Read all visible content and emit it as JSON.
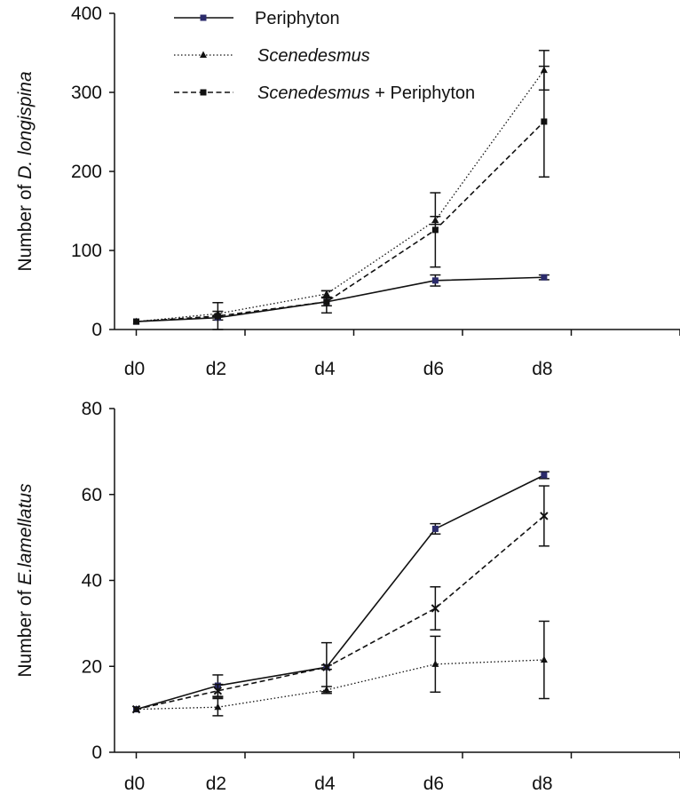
{
  "legend": [
    {
      "segments": [
        {
          "text": "Periphyton",
          "italic": false
        }
      ],
      "style": "solid",
      "marker": "square",
      "color": "#2b2b6b"
    },
    {
      "segments": [
        {
          "text": "Scenedesmus",
          "italic": true
        }
      ],
      "style": "dotted",
      "marker": "triangle",
      "color": "#111111"
    },
    {
      "segments": [
        {
          "text": "Scenedesmus",
          "italic": true
        },
        {
          "text": " + Periphyton",
          "italic": false
        }
      ],
      "style": "dashed",
      "marker": "square",
      "color": "#111111"
    }
  ],
  "chart_data": [
    {
      "type": "line",
      "ylabel_parts": [
        {
          "text": "Number of ",
          "italic": false
        },
        {
          "text": "D. longispina",
          "italic": true
        }
      ],
      "xlabel": "",
      "categories": [
        "d0",
        "d2",
        "d4",
        "d6",
        "d8"
      ],
      "x_values": [
        0,
        1.5,
        3.5,
        5.5,
        7.5
      ],
      "x_tick_positions": [
        0,
        2,
        4,
        6,
        8,
        10
      ],
      "x_tick_labels": [
        "d0",
        "d2",
        "d4",
        "d6",
        "d8"
      ],
      "xlim": [
        -0.4,
        10
      ],
      "ylim": [
        0,
        400
      ],
      "yticks": [
        0,
        100,
        200,
        300,
        400
      ],
      "grid": false,
      "legend_position": "top-center",
      "series": [
        {
          "name": "Periphyton",
          "style": "solid",
          "marker": "square",
          "values": [
            10,
            15,
            35,
            62,
            66
          ],
          "errors": [
            0,
            3,
            5,
            7,
            3
          ]
        },
        {
          "name": "Scenedesmus",
          "style": "dotted",
          "marker": "triangle",
          "values": [
            10,
            20,
            45,
            138,
            328
          ],
          "errors": [
            0,
            3,
            4,
            5,
            25
          ]
        },
        {
          "name": "Scenedesmus + Periphyton",
          "style": "dashed",
          "marker": "square",
          "values": [
            10,
            17,
            35,
            126,
            263
          ],
          "errors": [
            0,
            17,
            14,
            47,
            70
          ]
        }
      ]
    },
    {
      "type": "line",
      "ylabel_parts": [
        {
          "text": "Number of ",
          "italic": false
        },
        {
          "text": "E.lamellatus",
          "italic": true
        }
      ],
      "xlabel": "",
      "categories": [
        "d0",
        "d2",
        "d4",
        "d6",
        "d8"
      ],
      "x_values": [
        0,
        1.5,
        3.5,
        5.5,
        7.5
      ],
      "x_tick_positions": [
        0,
        2,
        4,
        6,
        8,
        10
      ],
      "x_tick_labels": [
        "d0",
        "d2",
        "d4",
        "d6",
        "d8"
      ],
      "xlim": [
        -0.4,
        10
      ],
      "ylim": [
        0,
        80
      ],
      "yticks": [
        0,
        20,
        40,
        60,
        80
      ],
      "grid": false,
      "legend_position": "none",
      "series": [
        {
          "name": "Periphyton",
          "style": "solid",
          "marker": "square",
          "values": [
            10,
            15.5,
            19.8,
            52,
            64.5
          ],
          "errors": [
            0,
            2.5,
            0.5,
            1.2,
            0.8
          ]
        },
        {
          "name": "Scenedesmus",
          "style": "dotted",
          "marker": "triangle",
          "values": [
            10,
            10.5,
            14.5,
            20.5,
            21.5
          ],
          "errors": [
            0,
            2,
            0.8,
            6.5,
            9
          ]
        },
        {
          "name": "Scenedesmus + Periphyton",
          "style": "dashed",
          "marker": "cross",
          "values": [
            10,
            14.3,
            19.8,
            33.5,
            55
          ],
          "errors": [
            0,
            1.5,
            5.7,
            5,
            7
          ]
        }
      ]
    }
  ]
}
